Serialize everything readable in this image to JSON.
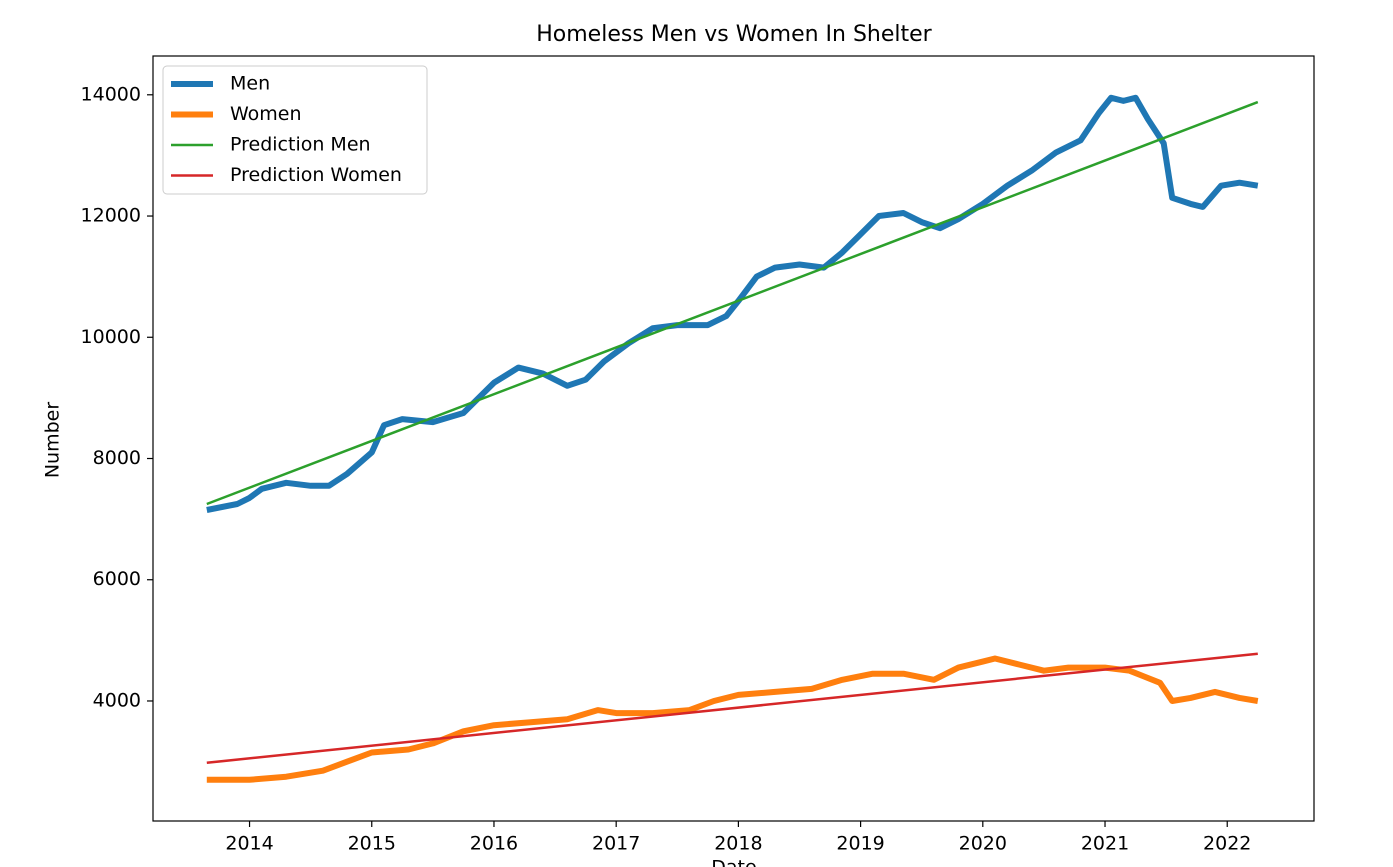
{
  "chart_data": {
    "type": "line",
    "title": "Homeless Men vs Women In Shelter",
    "x_label": "Date",
    "y_label": "Number",
    "xlim": [
      2013.21,
      2022.71
    ],
    "ylim": [
      2020,
      14640
    ],
    "xticks": [
      2014,
      2015,
      2016,
      2017,
      2018,
      2019,
      2020,
      2021,
      2022
    ],
    "yticks": [
      4000,
      6000,
      8000,
      10000,
      12000,
      14000
    ],
    "grid": false,
    "legend": "upper left",
    "series": [
      {
        "name": "Men",
        "color": "#1f77b4",
        "width": 6,
        "x": [
          2013.65,
          2013.9,
          2014.0,
          2014.1,
          2014.3,
          2014.5,
          2014.65,
          2014.8,
          2015.0,
          2015.1,
          2015.25,
          2015.5,
          2015.75,
          2015.9,
          2016.0,
          2016.2,
          2016.4,
          2016.6,
          2016.75,
          2016.9,
          2017.1,
          2017.3,
          2017.5,
          2017.75,
          2017.9,
          2018.0,
          2018.15,
          2018.3,
          2018.5,
          2018.7,
          2018.85,
          2019.0,
          2019.15,
          2019.35,
          2019.5,
          2019.65,
          2019.8,
          2020.0,
          2020.2,
          2020.4,
          2020.6,
          2020.8,
          2020.95,
          2021.05,
          2021.15,
          2021.25,
          2021.35,
          2021.48,
          2021.55,
          2021.7,
          2021.8,
          2021.95,
          2022.1,
          2022.25
        ],
        "values": [
          7150,
          7250,
          7350,
          7500,
          7600,
          7550,
          7550,
          7750,
          8100,
          8550,
          8650,
          8600,
          8750,
          9050,
          9250,
          9500,
          9400,
          9200,
          9300,
          9600,
          9900,
          10150,
          10200,
          10200,
          10350,
          10600,
          11000,
          11150,
          11200,
          11150,
          11400,
          11700,
          12000,
          12050,
          11900,
          11800,
          11950,
          12200,
          12500,
          12750,
          13050,
          13250,
          13700,
          13950,
          13900,
          13950,
          13600,
          13200,
          12300,
          12200,
          12150,
          12500,
          12550,
          12500
        ]
      },
      {
        "name": "Women",
        "color": "#ff7f0e",
        "width": 6,
        "x": [
          2013.65,
          2014.0,
          2014.3,
          2014.6,
          2014.8,
          2015.0,
          2015.3,
          2015.5,
          2015.75,
          2016.0,
          2016.3,
          2016.6,
          2016.85,
          2017.0,
          2017.3,
          2017.6,
          2017.8,
          2018.0,
          2018.3,
          2018.6,
          2018.85,
          2019.1,
          2019.35,
          2019.6,
          2019.8,
          2020.0,
          2020.1,
          2020.3,
          2020.5,
          2020.7,
          2021.0,
          2021.2,
          2021.45,
          2021.55,
          2021.7,
          2021.9,
          2022.1,
          2022.25
        ],
        "values": [
          2700,
          2700,
          2750,
          2850,
          3000,
          3150,
          3200,
          3300,
          3500,
          3600,
          3650,
          3700,
          3850,
          3800,
          3800,
          3850,
          4000,
          4100,
          4150,
          4200,
          4350,
          4450,
          4450,
          4350,
          4550,
          4650,
          4700,
          4600,
          4500,
          4550,
          4550,
          4500,
          4300,
          4000,
          4050,
          4150,
          4050,
          4000
        ]
      },
      {
        "name": "Prediction Men",
        "color": "#2ca02c",
        "width": 2.5,
        "x": [
          2013.65,
          2022.25
        ],
        "values": [
          7250,
          13880
        ]
      },
      {
        "name": "Prediction Women",
        "color": "#d62728",
        "width": 2.5,
        "x": [
          2013.65,
          2022.25
        ],
        "values": [
          2980,
          4780
        ]
      }
    ]
  }
}
